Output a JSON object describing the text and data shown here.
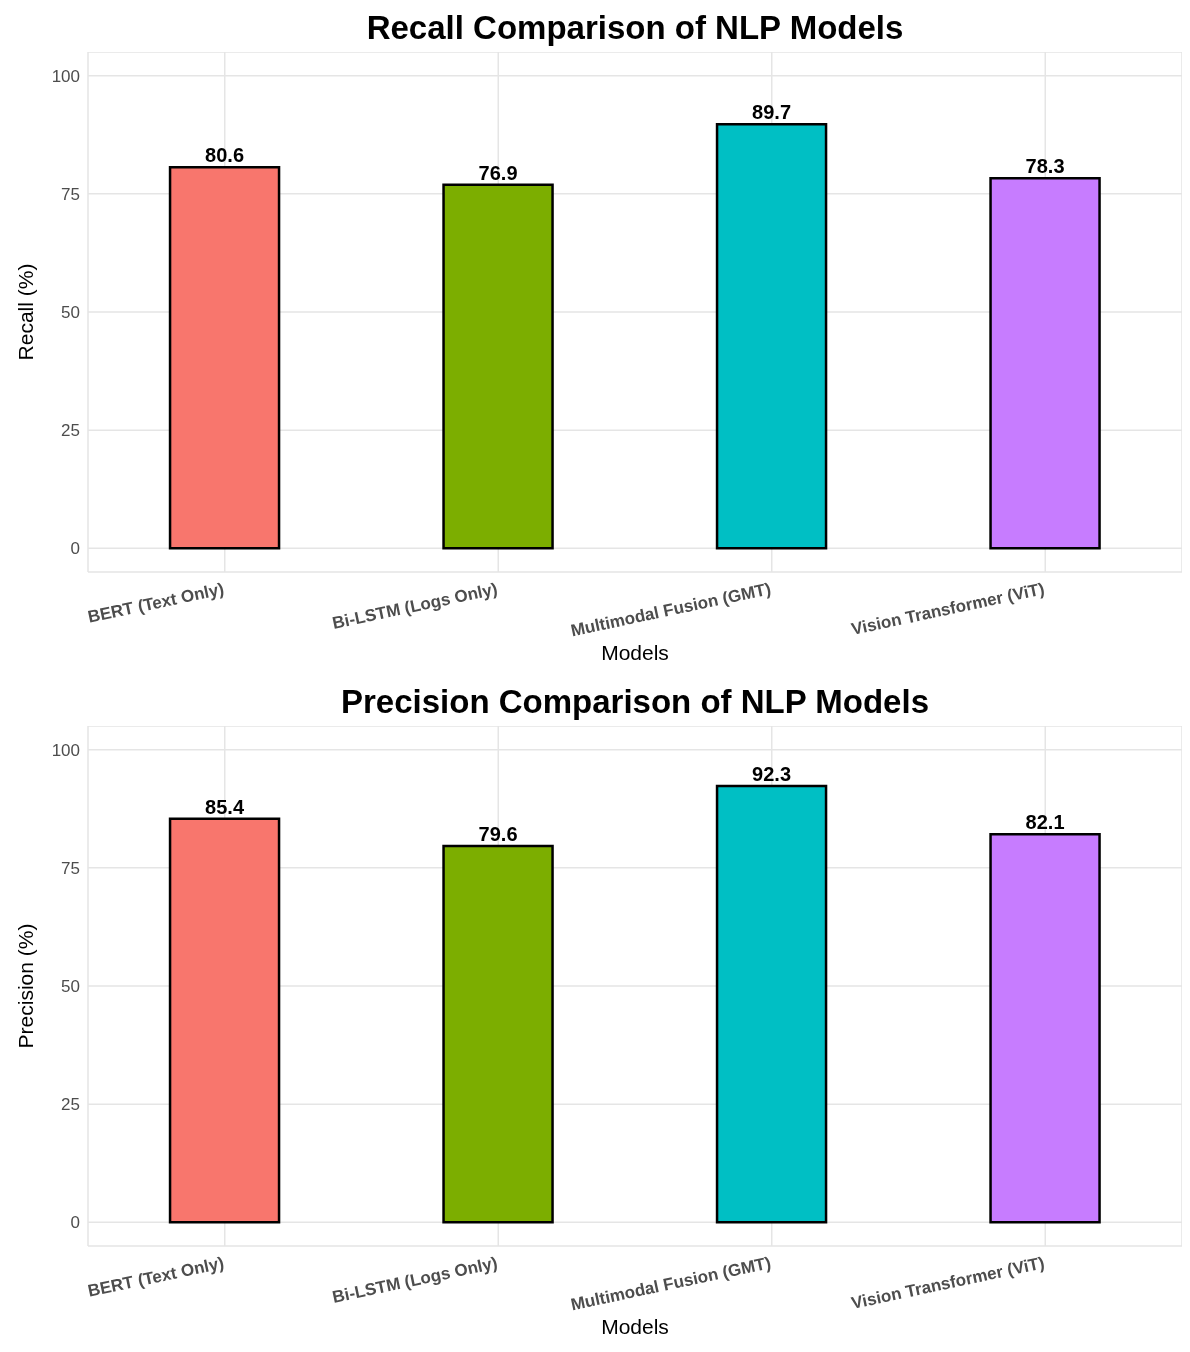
{
  "chart_data": [
    {
      "type": "bar",
      "title": "Recall Comparison of NLP Models",
      "xlabel": "Models",
      "ylabel": "Recall (%)",
      "categories": [
        "BERT (Text Only)",
        "Bi-LSTM (Logs Only)",
        "Multimodal Fusion (GMT)",
        "Vision Transformer (ViT)"
      ],
      "values": [
        80.6,
        76.9,
        89.7,
        78.3
      ],
      "colors": [
        "#f8766d",
        "#7cae00",
        "#00bfc4",
        "#c77cff"
      ],
      "ylim": [
        -5,
        105
      ],
      "yticks": [
        0,
        25,
        50,
        75,
        100
      ],
      "grid": true,
      "data_labels": true
    },
    {
      "type": "bar",
      "title": "Precision Comparison of NLP Models",
      "xlabel": "Models",
      "ylabel": "Precision (%)",
      "categories": [
        "BERT (Text Only)",
        "Bi-LSTM (Logs Only)",
        "Multimodal Fusion (GMT)",
        "Vision Transformer (ViT)"
      ],
      "values": [
        85.4,
        79.6,
        92.3,
        82.1
      ],
      "colors": [
        "#f8766d",
        "#7cae00",
        "#00bfc4",
        "#c77cff"
      ],
      "ylim": [
        -5,
        105
      ],
      "yticks": [
        0,
        25,
        50,
        75,
        100
      ],
      "grid": true,
      "data_labels": true
    }
  ]
}
